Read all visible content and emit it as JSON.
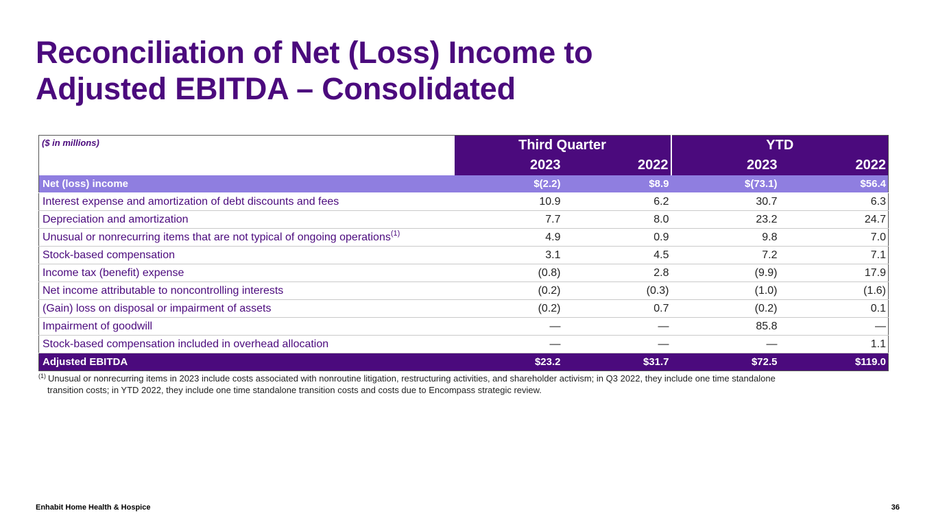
{
  "title": {
    "line1": "Reconciliation of Net (Loss) Income to",
    "line2": "Adjusted EBITDA – Consolidated"
  },
  "table": {
    "units": "($ in millions)",
    "groups": [
      "Third Quarter",
      "YTD"
    ],
    "years": [
      "2023",
      "2022",
      "2023",
      "2022"
    ],
    "rows": [
      {
        "label": "Net (loss) income",
        "values": [
          "$(2.2)",
          "$8.9",
          "$(73.1)",
          "$56.4"
        ]
      },
      {
        "label": "Interest expense and amortization of debt discounts and fees",
        "values": [
          "10.9",
          "6.2",
          "30.7",
          "6.3"
        ]
      },
      {
        "label": "Depreciation and amortization",
        "values": [
          "7.7",
          "8.0",
          "23.2",
          "24.7"
        ]
      },
      {
        "label": "Unusual or nonrecurring items that are not typical of ongoing operations",
        "sup": "(1)",
        "values": [
          "4.9",
          "0.9",
          "9.8",
          "7.0"
        ]
      },
      {
        "label": "Stock-based compensation",
        "values": [
          "3.1",
          "4.5",
          "7.2",
          "7.1"
        ]
      },
      {
        "label": "Income tax (benefit) expense",
        "values": [
          "(0.8)",
          "2.8",
          "(9.9)",
          "17.9"
        ]
      },
      {
        "label": "Net income attributable to noncontrolling interests",
        "values": [
          "(0.2)",
          "(0.3)",
          "(1.0)",
          "(1.6)"
        ]
      },
      {
        "label": "(Gain) loss on disposal or impairment of assets",
        "values": [
          "(0.2)",
          "0.7",
          "(0.2)",
          "0.1"
        ]
      },
      {
        "label": "Impairment of goodwill",
        "values": [
          "—",
          "—",
          "85.8",
          "—"
        ]
      },
      {
        "label": "Stock-based compensation included in overhead allocation",
        "values": [
          "—",
          "—",
          "—",
          "1.1"
        ]
      },
      {
        "label": "Adjusted EBITDA",
        "values": [
          "$23.2",
          "$31.7",
          "$72.5",
          "$119.0"
        ]
      }
    ]
  },
  "footnote": {
    "mark": "(1)",
    "line1": "Unusual or nonrecurring items in 2023 include costs associated with nonroutine litigation, restructuring activities, and shareholder activism; in Q3 2022, they include one time standalone",
    "line2": "transition costs; in YTD 2022, they include one time standalone transition costs and costs due to Encompass strategic review."
  },
  "footer": {
    "company": "Enhabit Home Health & Hospice",
    "page_number": "36"
  },
  "colors": {
    "brand_purple": "#4b0a7d",
    "highlight_row": "#8f7ee0"
  }
}
